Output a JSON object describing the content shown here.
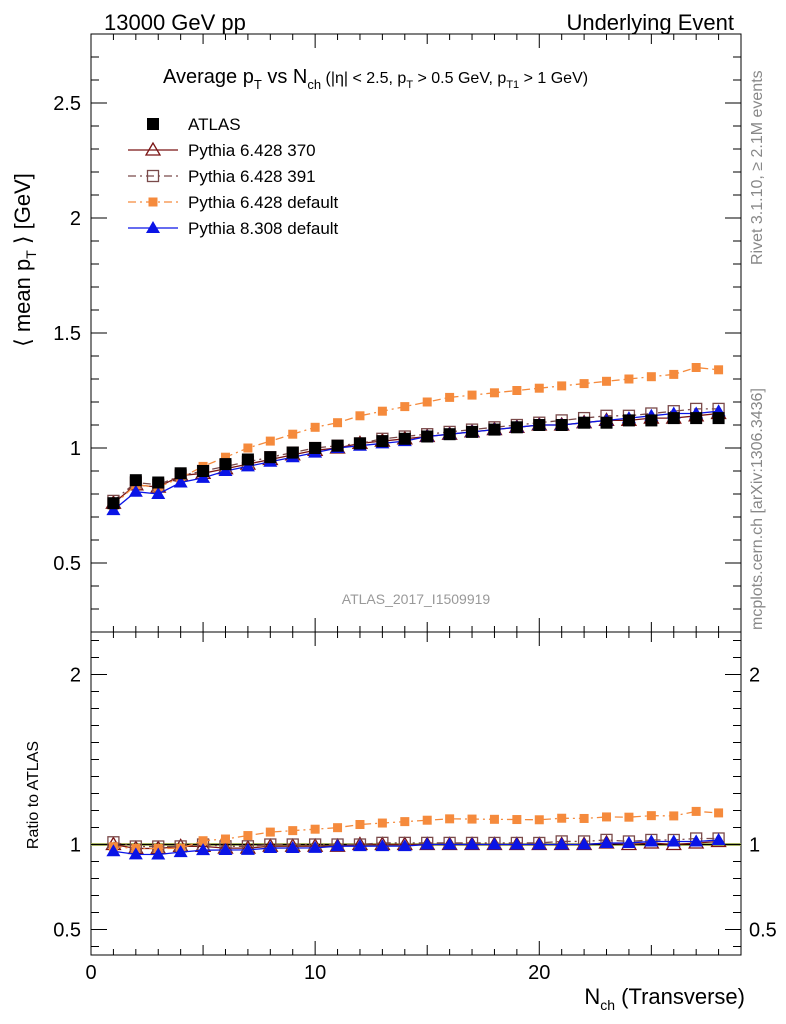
{
  "header": {
    "left": "13000 GeV pp",
    "right": "Underlying Event"
  },
  "side_labels": {
    "rivet": "Rivet 3.1.10, ≥ 2.1M events",
    "mcplots": "mcplots.cern.ch [arXiv:1306.3436]"
  },
  "watermark": "ATLAS_2017_I1509919",
  "title": {
    "main": "Average p",
    "sub_T": "T",
    "vs": " vs N",
    "sub_ch": "ch",
    "cuts_a": " (|η| < 2.5, p",
    "cuts_b": " > 0.5 GeV, p",
    "cuts_sub_T1": "T1",
    "cuts_c": " > 1 GeV)"
  },
  "axes": {
    "ylabel_main_a": "⟨ mean p",
    "ylabel_main_sub": "T",
    "ylabel_main_b": " ⟩ [GeV]",
    "ylabel_ratio": "Ratio to ATLAS",
    "xlabel_a": "N",
    "xlabel_sub": "ch",
    "xlabel_b": " (Transverse)"
  },
  "colors": {
    "atlas": "#000000",
    "py370": "#7a1414",
    "py391": "#7a4a4a",
    "py6def": "#f58a3c",
    "py8def": "#0a14e6",
    "band": "#d8ee6a"
  },
  "chart_data": {
    "type": "scatter",
    "x": [
      1,
      2,
      3,
      4,
      5,
      6,
      7,
      8,
      9,
      10,
      11,
      12,
      13,
      14,
      15,
      16,
      17,
      18,
      19,
      20,
      21,
      22,
      23,
      24,
      25,
      26,
      27,
      28
    ],
    "xlim": [
      0,
      29
    ],
    "main_ylim": [
      0.2,
      2.8
    ],
    "main_yticks": [
      "0.5",
      "1",
      "1.5",
      "2",
      "2.5"
    ],
    "main_ytick_values": [
      0.5,
      1,
      1.5,
      2,
      2.5
    ],
    "ratio_ylim": [
      0.35,
      2.25
    ],
    "ratio_yticks": [
      "0.5",
      "1",
      "2"
    ],
    "ratio_ytick_values": [
      0.5,
      1,
      2
    ],
    "xticks": [
      "0",
      "10",
      "20"
    ],
    "xtick_values": [
      0,
      10,
      20
    ],
    "series": [
      {
        "name": "ATLAS",
        "key": "atlas",
        "marker": "square-filled",
        "line": "none",
        "values": [
          0.76,
          0.86,
          0.85,
          0.89,
          0.9,
          0.93,
          0.95,
          0.96,
          0.98,
          1.0,
          1.01,
          1.02,
          1.03,
          1.04,
          1.05,
          1.06,
          1.07,
          1.08,
          1.09,
          1.1,
          1.1,
          1.11,
          1.11,
          1.12,
          1.12,
          1.13,
          1.13,
          1.13
        ]
      },
      {
        "name": "Pythia 6.428 370",
        "key": "py370",
        "marker": "triangle-open",
        "line": "solid",
        "values": [
          0.76,
          0.84,
          0.83,
          0.88,
          0.89,
          0.91,
          0.93,
          0.95,
          0.97,
          0.99,
          1.0,
          1.02,
          1.03,
          1.04,
          1.05,
          1.06,
          1.07,
          1.08,
          1.09,
          1.1,
          1.1,
          1.11,
          1.12,
          1.12,
          1.13,
          1.13,
          1.14,
          1.15
        ]
      },
      {
        "name": "Pythia 6.428 391",
        "key": "py391",
        "marker": "square-open",
        "line": "dashdot",
        "values": [
          0.77,
          0.85,
          0.84,
          0.88,
          0.9,
          0.92,
          0.94,
          0.96,
          0.98,
          1.0,
          1.01,
          1.02,
          1.04,
          1.05,
          1.06,
          1.07,
          1.08,
          1.09,
          1.1,
          1.11,
          1.12,
          1.13,
          1.14,
          1.14,
          1.15,
          1.16,
          1.17,
          1.17
        ]
      },
      {
        "name": "Pythia 6.428 default",
        "key": "py6def",
        "marker": "square-filled-small",
        "line": "dashdot",
        "values": [
          0.75,
          0.84,
          0.83,
          0.87,
          0.92,
          0.96,
          1.0,
          1.03,
          1.06,
          1.09,
          1.11,
          1.14,
          1.16,
          1.18,
          1.2,
          1.22,
          1.23,
          1.24,
          1.25,
          1.26,
          1.27,
          1.28,
          1.29,
          1.3,
          1.31,
          1.32,
          1.35,
          1.34
        ]
      },
      {
        "name": "Pythia 8.308 default",
        "key": "py8def",
        "marker": "triangle-filled",
        "line": "solid",
        "values": [
          0.73,
          0.81,
          0.8,
          0.85,
          0.87,
          0.9,
          0.92,
          0.94,
          0.96,
          0.98,
          1.0,
          1.01,
          1.02,
          1.03,
          1.05,
          1.06,
          1.07,
          1.08,
          1.09,
          1.1,
          1.1,
          1.11,
          1.12,
          1.13,
          1.14,
          1.15,
          1.15,
          1.16
        ]
      }
    ]
  }
}
